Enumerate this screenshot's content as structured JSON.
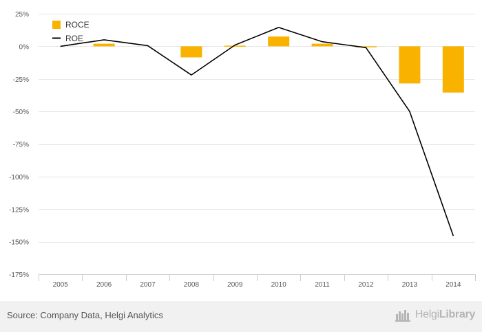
{
  "chart_data": {
    "type": "bar",
    "categories": [
      "2005",
      "2006",
      "2007",
      "2008",
      "2009",
      "2010",
      "2011",
      "2012",
      "2013",
      "2014"
    ],
    "series": [
      {
        "name": "ROCE",
        "kind": "bar",
        "color": "#F9B200",
        "values": [
          0,
          2,
          0,
          -8.5,
          0.5,
          7.5,
          2,
          -0.5,
          -28.5,
          -35.5
        ]
      },
      {
        "name": "ROE",
        "kind": "line",
        "color": "#000000",
        "values": [
          0,
          5,
          0.5,
          -22,
          1,
          14.5,
          3.5,
          -1,
          -50,
          -145.5
        ]
      }
    ],
    "y_ticks": [
      25,
      0,
      -25,
      -50,
      -75,
      -100,
      -125,
      -150,
      -175
    ],
    "y_tick_labels": [
      "25%",
      "0%",
      "-25%",
      "-50%",
      "-75%",
      "-100%",
      "-125%",
      "-150%",
      "-175%"
    ],
    "ylim": [
      -175,
      25
    ],
    "title": "",
    "xlabel": "",
    "ylabel": "",
    "grid": true,
    "legend_position": "top-left"
  },
  "footer": {
    "source": "Source: Company Data, Helgi Analytics",
    "brand_light": "Helgi",
    "brand_bold": "Library"
  }
}
